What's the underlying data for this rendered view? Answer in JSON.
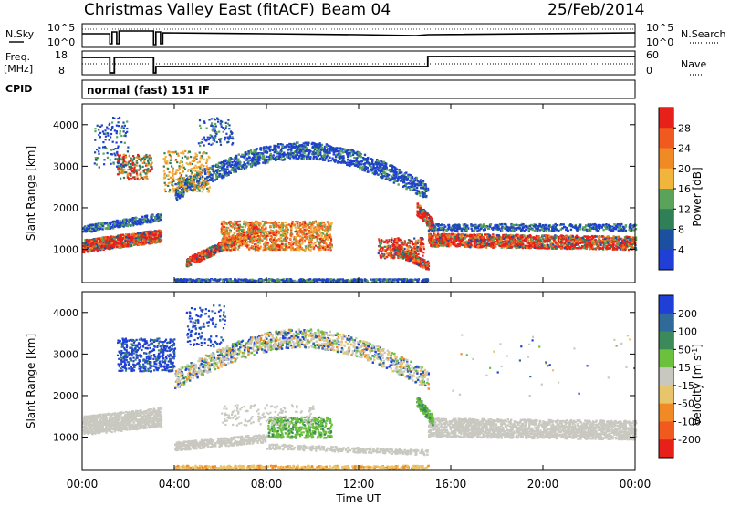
{
  "header": {
    "station": "Christmas Valley East (fitACF)",
    "beam": "Beam 04",
    "date": "25/Feb/2014"
  },
  "strip_labels": {
    "nsky": "N.Sky",
    "nsearch": "N.Search",
    "freq_line1": "Freq.",
    "freq_line2": "[MHz]",
    "nave": "Nave",
    "cpid": "CPID",
    "cpid_value": "normal (fast) 151 IF"
  },
  "strip_ticks": {
    "noise_top": "10^5",
    "noise_bottom": "10^0",
    "freq_top": "18",
    "freq_bottom": "8",
    "nave_top": "60",
    "nave_bottom": "0"
  },
  "colors": {
    "power": [
      "#1f3fd6",
      "#1d4fa0",
      "#2f7f57",
      "#5aa35a",
      "#f0b53a",
      "#f08a24",
      "#f05a1e",
      "#e8201a"
    ],
    "velocity": [
      "#1f3fd6",
      "#2f6a9a",
      "#3c8a5a",
      "#6cc13c",
      "#c8c8c0",
      "#e8c46a",
      "#f08a24",
      "#f05a1e",
      "#e8201a"
    ]
  },
  "chart_data": [
    {
      "type": "heatmap",
      "name": "power",
      "xlabel": "",
      "ylabel": "Slant Range [km]",
      "x_ticks": [
        "00:00",
        "04:00",
        "08:00",
        "12:00",
        "16:00",
        "20:00",
        "00:00"
      ],
      "y_ticks": [
        "1000",
        "2000",
        "3000",
        "4000"
      ],
      "xlim_hours": [
        0,
        24
      ],
      "ylim_km": [
        200,
        4500
      ],
      "colorbar": {
        "label": "Power [dB]",
        "ticks": [
          "4",
          "8",
          "12",
          "16",
          "20",
          "24",
          "28"
        ],
        "range": [
          0,
          32
        ]
      }
    },
    {
      "type": "heatmap",
      "name": "velocity",
      "xlabel": "Time UT",
      "ylabel": "Slant Range [km]",
      "x_ticks": [
        "00:00",
        "04:00",
        "08:00",
        "12:00",
        "16:00",
        "20:00",
        "00:00"
      ],
      "y_ticks": [
        "1000",
        "2000",
        "3000",
        "4000"
      ],
      "xlim_hours": [
        0,
        24
      ],
      "ylim_km": [
        200,
        4500
      ],
      "colorbar": {
        "label": "Velocity [m s^-1]",
        "ticks": [
          "200",
          "100",
          "50",
          "15",
          "-15",
          "-50",
          "-100",
          "-200"
        ],
        "range": [
          -250,
          250
        ]
      }
    }
  ]
}
